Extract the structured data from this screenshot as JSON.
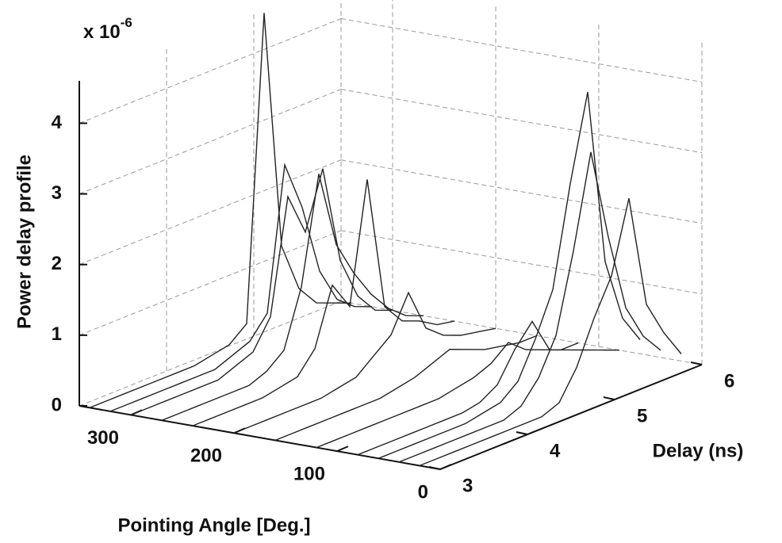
{
  "chart_data": {
    "type": "waterfall3d",
    "scale_base": "x 10",
    "scale_exponent": "-6",
    "z_label": "Power delay profile",
    "x_label": "Pointing Angle [Deg.]",
    "y_label": "Delay (ns)",
    "xlim": [
      0,
      350
    ],
    "xticks": [
      0,
      100,
      200,
      300
    ],
    "ylim": [
      3,
      6
    ],
    "yticks": [
      3,
      4,
      5,
      6
    ],
    "zlim": [
      0,
      4.6
    ],
    "zticks": [
      0,
      1,
      2,
      3,
      4
    ],
    "grid": true,
    "color": "#222222",
    "delays": [
      3.0,
      3.2,
      3.4,
      3.6,
      3.8,
      4.0,
      4.2,
      4.4,
      4.6,
      4.8,
      5.0,
      5.2,
      5.4,
      5.6,
      5.8,
      6.0
    ],
    "series": [
      {
        "angle": 340,
        "values": [
          0,
          0,
          0,
          0,
          0,
          0,
          0,
          0.05,
          0.1,
          0.3,
          4.6,
          1.2,
          0.5,
          0.2,
          0.1,
          0
        ]
      },
      {
        "angle": 320,
        "values": [
          0,
          0,
          0,
          0,
          0,
          0,
          0,
          0.1,
          0.2,
          0.5,
          2.5,
          1.8,
          0.8,
          0.3,
          0.1,
          0
        ]
      },
      {
        "angle": 300,
        "values": [
          0,
          0,
          0,
          0,
          0,
          0,
          0.1,
          0.2,
          0.6,
          2.2,
          1.6,
          2.4,
          1.0,
          0.4,
          0.1,
          0
        ]
      },
      {
        "angle": 270,
        "values": [
          0,
          0,
          0,
          0,
          0,
          0,
          0.1,
          0.3,
          1.1,
          2.6,
          1.5,
          1.0,
          0.6,
          0.3,
          0.1,
          0
        ]
      },
      {
        "angle": 240,
        "values": [
          0,
          0,
          0,
          0,
          0,
          0.05,
          0.1,
          0.4,
          1.2,
          0.8,
          2.5,
          0.6,
          0.3,
          0.2,
          0.05,
          0
        ]
      },
      {
        "angle": 200,
        "values": [
          0,
          0,
          0,
          0,
          0,
          0,
          0.05,
          0.1,
          0.3,
          0.5,
          1.0,
          0.4,
          0.2,
          0.1,
          0.05,
          0
        ]
      },
      {
        "angle": 160,
        "values": [
          0,
          0,
          0,
          0,
          0,
          0,
          0,
          0.05,
          0.1,
          0.2,
          0.3,
          0.2,
          0.1,
          0.05,
          0,
          0
        ]
      },
      {
        "angle": 120,
        "values": [
          0,
          0,
          0,
          0,
          0,
          0,
          0,
          0,
          0.05,
          0.1,
          0.2,
          0.4,
          0.2,
          0.1,
          0,
          0
        ]
      },
      {
        "angle": 80,
        "values": [
          0,
          0,
          0,
          0,
          0,
          0,
          0,
          0.05,
          0.2,
          0.6,
          0.9,
          0.4,
          0.3,
          0.2,
          0.1,
          0
        ]
      },
      {
        "angle": 60,
        "values": [
          0,
          0,
          0,
          0,
          0,
          0,
          0.05,
          0.1,
          0.3,
          0.8,
          1.4,
          2.8,
          4.0,
          1.5,
          0.6,
          0.2
        ]
      },
      {
        "angle": 40,
        "values": [
          0,
          0,
          0,
          0,
          0,
          0,
          0,
          0.1,
          0.4,
          0.9,
          2.0,
          3.3,
          2.0,
          0.9,
          0.4,
          0.1
        ]
      },
      {
        "angle": 20,
        "values": [
          0,
          0,
          0,
          0,
          0,
          0,
          0,
          0,
          0.1,
          0.5,
          1.1,
          1.6,
          2.6,
          1.0,
          0.5,
          0.1
        ]
      }
    ]
  }
}
